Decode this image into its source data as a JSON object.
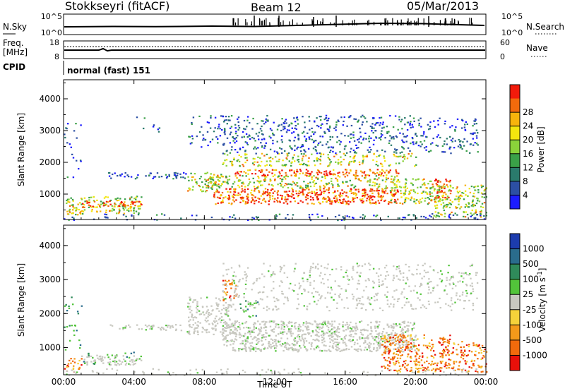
{
  "header": {
    "radar": "Stokkseyri (fitACF)",
    "beam": "Beam 12",
    "date": "05/Mar/2013"
  },
  "noise_panel": {
    "left_label": "N.Sky",
    "left_ticks": [
      "10^5",
      "10^0"
    ],
    "right_ticks": [
      "10^5",
      "10^0"
    ],
    "right_label": "N.Search"
  },
  "freq_panel": {
    "left_label_1": "Freq.",
    "left_label_2": "[MHz]",
    "left_ticks": [
      "18",
      "8"
    ],
    "right_ticks": [
      "60",
      "0"
    ],
    "right_label": "Nave"
  },
  "cpid_panel": {
    "label": "CPID",
    "value": "normal (fast) 151"
  },
  "chart_data": [
    {
      "type": "heatmap",
      "name": "power",
      "xlabel": "",
      "ylabel": "Slant Range [km]",
      "yticks": [
        "1000",
        "2000",
        "3000",
        "4000"
      ],
      "ylim": [
        200,
        4600
      ],
      "colorbar": {
        "label": "Power [dB]",
        "ticks": [
          "4",
          "8",
          "12",
          "16",
          "20",
          "24",
          "28"
        ],
        "colors": [
          "#1c1cff",
          "#2c4fa3",
          "#2a7a6c",
          "#3aa048",
          "#8ad23a",
          "#f3e60e",
          "#f7b40c",
          "#f26a0c",
          "#f21b0b"
        ]
      }
    },
    {
      "type": "heatmap",
      "name": "velocity",
      "xlabel": "Time UT",
      "xticks": [
        "00:00",
        "04:00",
        "08:00",
        "12:00",
        "16:00",
        "20:00",
        "00:00"
      ],
      "ylabel": "Slant Range [km]",
      "yticks": [
        "1000",
        "2000",
        "3000",
        "4000"
      ],
      "ylim": [
        200,
        4600
      ],
      "colorbar": {
        "label": "Velocity [m s^-1]",
        "ticks": [
          "1000",
          "500",
          "100",
          "25",
          "-25",
          "-100",
          "-500",
          "-1000"
        ],
        "colors": [
          "#1c3cae",
          "#2a6c8c",
          "#2f8a5a",
          "#52c43a",
          "#c8c8c0",
          "#f5d23a",
          "#f39a1a",
          "#f26a0c",
          "#e8100a"
        ]
      }
    }
  ]
}
